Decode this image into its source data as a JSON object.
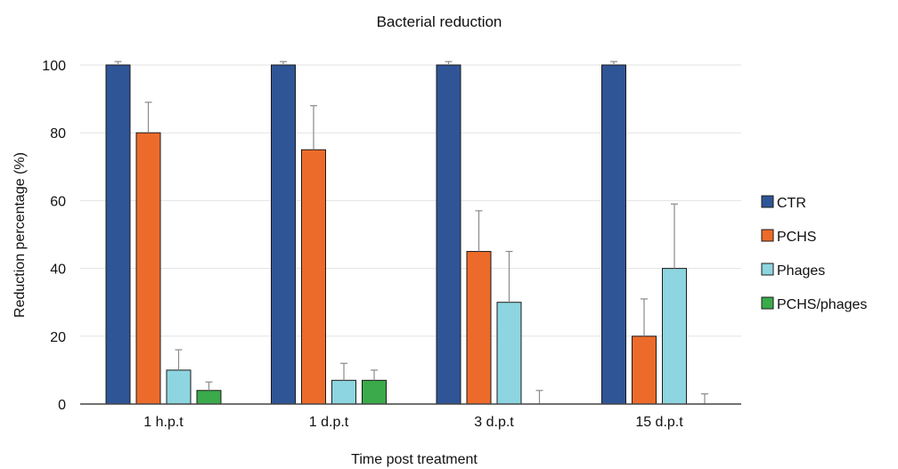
{
  "chart_data": {
    "type": "bar",
    "title": "Bacterial reduction",
    "xlabel": "Time post treatment",
    "ylabel": "Reduction percentage (%)",
    "ylim": [
      0,
      100
    ],
    "yticks": [
      0,
      20,
      40,
      60,
      80,
      100
    ],
    "grid": true,
    "legend_position": "right",
    "categories": [
      "1 h.p.t",
      "1 d.p.t",
      "3 d.p.t",
      "15 d.p.t"
    ],
    "series": [
      {
        "name": "CTR",
        "color": "#2f5597",
        "values": [
          100,
          100,
          100,
          100
        ],
        "errors": [
          1,
          1,
          1,
          1
        ]
      },
      {
        "name": "PCHS",
        "color": "#ed6b2a",
        "values": [
          80,
          75,
          45,
          20
        ],
        "errors": [
          9,
          13,
          12,
          11
        ]
      },
      {
        "name": "Phages",
        "color": "#8dd5e0",
        "values": [
          10,
          7,
          30,
          40
        ],
        "errors": [
          6,
          5,
          15,
          19
        ]
      },
      {
        "name": "PCHS/phages",
        "color": "#3aaa4a",
        "values": [
          4,
          7,
          0,
          0
        ],
        "errors": [
          2.5,
          3,
          4,
          3
        ]
      }
    ]
  }
}
